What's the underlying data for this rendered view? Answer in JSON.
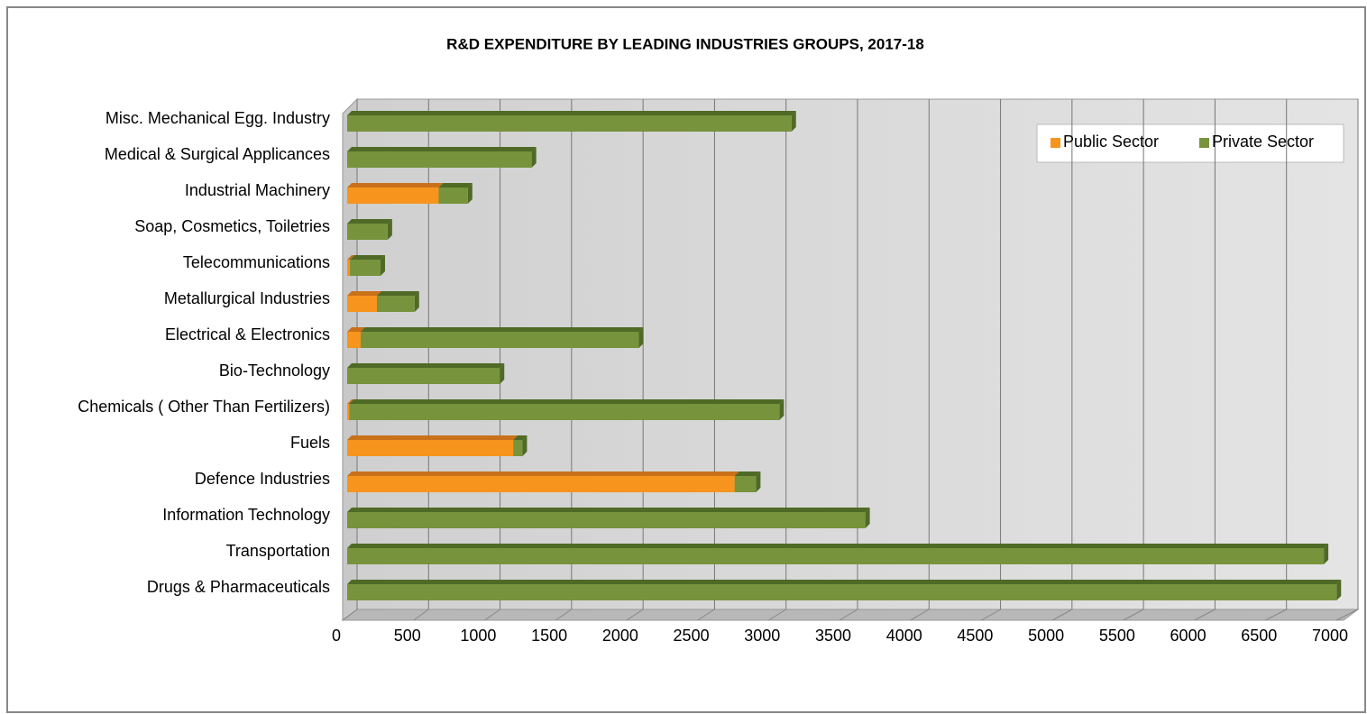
{
  "chart_data": {
    "type": "bar",
    "orientation": "horizontal",
    "stacked": true,
    "title": "R&D EXPENDITURE BY LEADING INDUSTRIES GROUPS, 2017-18",
    "categories": [
      "Misc. Mechanical Egg. Industry",
      "Medical & Surgical Applicances",
      "Industrial Machinery",
      "Soap, Cosmetics, Toiletries",
      "Telecommunications",
      "Metallurgical  Industries",
      "Electrical & Electronics",
      "Bio-Technology",
      "Chemicals ( Other Than Fertilizers)",
      "Fuels",
      "Defence Industries",
      "Information  Technology",
      "Transportation",
      "Drugs & Pharmaceuticals"
    ],
    "series": [
      {
        "name": "Public Sector",
        "color": "#f7941d",
        "values": [
          0,
          0,
          645,
          0,
          20,
          210,
          95,
          0,
          15,
          1170,
          2730,
          0,
          0,
          0
        ]
      },
      {
        "name": "Private Sector",
        "color": "#77933c",
        "values": [
          3130,
          1300,
          205,
          285,
          215,
          265,
          1960,
          1075,
          3030,
          65,
          150,
          3650,
          6880,
          6970
        ]
      }
    ],
    "xlim": [
      0,
      7000
    ],
    "xticks": [
      0,
      500,
      1000,
      1500,
      2000,
      2500,
      3000,
      3500,
      4000,
      4500,
      5000,
      5500,
      6000,
      6500,
      7000
    ],
    "grid": true,
    "legend": "top-right"
  }
}
